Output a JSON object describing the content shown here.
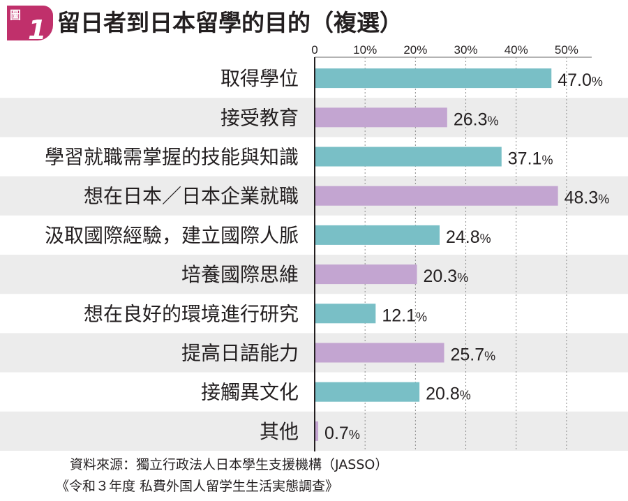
{
  "figure": {
    "badge_label": "圖",
    "badge_number": "1",
    "badge_color": "#c0306b",
    "title": "留日者到日本留學的目的（複選）"
  },
  "chart_data": {
    "type": "bar",
    "orientation": "horizontal",
    "title": "留日者到日本留學的目的（複選）",
    "xlabel": "",
    "ylabel": "",
    "xlim": [
      0,
      55
    ],
    "ticks": [
      0,
      10,
      20,
      30,
      40,
      50
    ],
    "tick_labels": [
      "0",
      "10%",
      "20%",
      "30%",
      "40%",
      "50%"
    ],
    "grid": true,
    "categories": [
      "取得學位",
      "接受教育",
      "學習就職需掌握的技能與知識",
      "想在日本／日本企業就職",
      "汲取國際經驗，建立國際人脈",
      "培養國際思維",
      "想在良好的環境進行研究",
      "提高日語能力",
      "接觸異文化",
      "其他"
    ],
    "values": [
      47.0,
      26.3,
      37.1,
      48.3,
      24.8,
      20.3,
      12.1,
      25.7,
      20.8,
      0.7
    ],
    "value_labels": [
      "47.0",
      "26.3",
      "37.1",
      "48.3",
      "24.8",
      "20.3",
      "12.1",
      "25.7",
      "20.8",
      "0.7"
    ],
    "unit": "%",
    "bar_colors": [
      "#79bfc6",
      "#c3a5d1"
    ],
    "stripe_color": "#ececec"
  },
  "source": {
    "line1": "資料來源：獨立行政法人日本學生支援機構（JASSO）",
    "line2": "《令和３年度 私費外国人留学生生活実態調查》"
  }
}
